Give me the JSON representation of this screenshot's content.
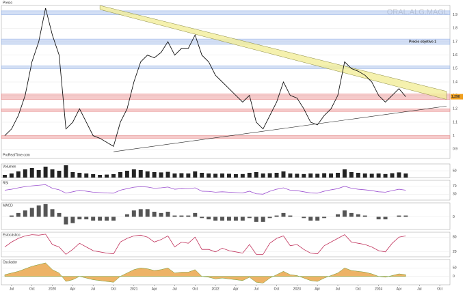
{
  "chart_data": {
    "type": "line",
    "title": "ORAL.ALG.MAGL",
    "subtitle": "Precio",
    "source": "ProRealTime.com",
    "xlim": [
      -0.5,
      65.5
    ],
    "xticks": [
      {
        "value": 1,
        "label": "Jul"
      },
      {
        "value": 4,
        "label": "Oct"
      },
      {
        "value": 7,
        "label": "2020"
      },
      {
        "value": 10,
        "label": "Apr"
      },
      {
        "value": 13,
        "label": "Jul"
      },
      {
        "value": 16,
        "label": "Oct"
      },
      {
        "value": 19,
        "label": "2021"
      },
      {
        "value": 22,
        "label": "Apr"
      },
      {
        "value": 25,
        "label": "Jul"
      },
      {
        "value": 28,
        "label": "Oct"
      },
      {
        "value": 31,
        "label": "2022"
      },
      {
        "value": 34,
        "label": "Apr"
      },
      {
        "value": 37,
        "label": "Jul"
      },
      {
        "value": 40,
        "label": "Oct"
      },
      {
        "value": 43,
        "label": "2023"
      },
      {
        "value": 46,
        "label": "Apr"
      },
      {
        "value": 49,
        "label": "Jul"
      },
      {
        "value": 52,
        "label": "Oct"
      },
      {
        "value": 55,
        "label": "2024"
      },
      {
        "value": 58,
        "label": "Apr"
      },
      {
        "value": 61,
        "label": "Jul"
      },
      {
        "value": 64,
        "label": "Oct"
      }
    ],
    "ylim": [
      0.83,
      1.97
    ],
    "yticks": [
      0.9,
      1,
      1.1,
      1.2,
      1.3,
      1.4,
      1.5,
      1.6,
      1.7,
      1.8,
      1.9
    ],
    "grid": true,
    "series": [
      {
        "name": "Precio",
        "color": "#111111",
        "values": [
          1.0,
          1.05,
          1.15,
          1.3,
          1.55,
          1.7,
          1.95,
          1.75,
          1.6,
          1.05,
          1.1,
          1.2,
          1.1,
          1.0,
          0.98,
          0.95,
          0.92,
          1.1,
          1.2,
          1.4,
          1.55,
          1.6,
          1.58,
          1.62,
          1.7,
          1.6,
          1.65,
          1.65,
          1.75,
          1.6,
          1.55,
          1.45,
          1.4,
          1.35,
          1.3,
          1.25,
          1.3,
          1.1,
          1.05,
          1.15,
          1.25,
          1.4,
          1.3,
          1.28,
          1.2,
          1.1,
          1.08,
          1.15,
          1.2,
          1.3,
          1.55,
          1.5,
          1.48,
          1.45,
          1.4,
          1.3,
          1.25,
          1.3,
          1.35,
          1.29
        ]
      }
    ],
    "last_label": {
      "value": 1.29,
      "label": "1,290"
    },
    "zones": [
      {
        "from": 1.9,
        "to": 1.93,
        "color": "#9db8e8"
      },
      {
        "from": 1.68,
        "to": 1.72,
        "color": "#9db8e8",
        "label": "Precio objetivo 1"
      },
      {
        "from": 1.5,
        "to": 1.52,
        "color": "#9db8e8"
      },
      {
        "from": 1.27,
        "to": 1.31,
        "color": "#e88a8a"
      },
      {
        "from": 1.18,
        "to": 1.2,
        "color": "#e88a8a"
      },
      {
        "from": 0.98,
        "to": 1.0,
        "color": "#e88a8a"
      }
    ],
    "channel": {
      "x": [
        14,
        65
      ],
      "upper": [
        1.97,
        1.33
      ],
      "lower": [
        1.94,
        1.27
      ],
      "color": "#f2ee9a"
    },
    "trendline": {
      "x": [
        16,
        65
      ],
      "y": [
        0.88,
        1.22
      ],
      "color": "#222222"
    },
    "panels": [
      {
        "name": "Volumen",
        "kind": "bar",
        "color": "#222222",
        "ylim": [
          0,
          100
        ],
        "yticks": [
          50
        ],
        "values": [
          20,
          30,
          45,
          60,
          70,
          55,
          80,
          60,
          50,
          90,
          40,
          35,
          30,
          25,
          20,
          22,
          25,
          40,
          50,
          60,
          55,
          45,
          40,
          38,
          42,
          30,
          32,
          30,
          45,
          35,
          30,
          28,
          30,
          28,
          25,
          26,
          35,
          40,
          30,
          32,
          35,
          45,
          30,
          28,
          26,
          30,
          28,
          32,
          30,
          35,
          60,
          40,
          35,
          30,
          28,
          30,
          26,
          32,
          38,
          30
        ]
      },
      {
        "name": "RSI",
        "kind": "line",
        "color": "#9b4fd0",
        "ylim": [
          0,
          100
        ],
        "yticks": [
          30,
          70
        ],
        "values": [
          50,
          55,
          62,
          68,
          72,
          75,
          78,
          60,
          52,
          35,
          42,
          50,
          45,
          40,
          38,
          36,
          35,
          50,
          58,
          65,
          68,
          66,
          60,
          62,
          66,
          55,
          58,
          57,
          62,
          45,
          44,
          40,
          42,
          40,
          38,
          36,
          45,
          32,
          30,
          45,
          55,
          62,
          50,
          48,
          42,
          36,
          35,
          45,
          52,
          58,
          70,
          60,
          55,
          52,
          48,
          42,
          40,
          48,
          55,
          50
        ]
      },
      {
        "name": "MACD",
        "kind": "bar",
        "color": "#555555",
        "ylim": [
          -0.1,
          0.11
        ],
        "yticks": [
          0
        ],
        "values": [
          0.0,
          0.01,
          0.03,
          0.05,
          0.07,
          0.09,
          0.1,
          0.06,
          0.03,
          -0.06,
          -0.05,
          -0.02,
          -0.02,
          -0.03,
          -0.03,
          -0.03,
          -0.03,
          0.0,
          0.02,
          0.05,
          0.06,
          0.06,
          0.04,
          0.03,
          0.04,
          0.01,
          0.01,
          0.01,
          0.03,
          -0.01,
          -0.02,
          -0.03,
          -0.03,
          -0.03,
          -0.03,
          -0.03,
          -0.01,
          -0.04,
          -0.04,
          -0.01,
          0.01,
          0.03,
          0.01,
          0.0,
          -0.01,
          -0.03,
          -0.03,
          -0.01,
          0.0,
          0.02,
          0.05,
          0.03,
          0.02,
          0.01,
          0.0,
          -0.02,
          -0.02,
          0.0,
          0.01,
          0.01
        ]
      },
      {
        "name": "Estocástico",
        "kind": "line",
        "color": "#c0305a",
        "ylim": [
          0,
          100
        ],
        "yticks": [
          20,
          80
        ],
        "values": [
          40,
          60,
          75,
          85,
          90,
          88,
          92,
          50,
          40,
          10,
          30,
          55,
          40,
          25,
          20,
          15,
          12,
          60,
          75,
          85,
          88,
          80,
          60,
          70,
          85,
          40,
          60,
          55,
          80,
          30,
          30,
          20,
          35,
          25,
          20,
          15,
          50,
          10,
          10,
          55,
          75,
          85,
          45,
          50,
          30,
          15,
          12,
          45,
          60,
          75,
          90,
          60,
          55,
          50,
          40,
          25,
          20,
          55,
          80,
          85
        ]
      },
      {
        "name": "Oscilador",
        "kind": "area",
        "color": "#e8a040",
        "ylim": [
          -50,
          100
        ],
        "yticks": [
          0,
          50
        ],
        "values": [
          10,
          20,
          30,
          45,
          60,
          70,
          80,
          40,
          20,
          -30,
          -20,
          0,
          -10,
          -20,
          -25,
          -30,
          -35,
          0,
          20,
          40,
          50,
          45,
          35,
          40,
          50,
          20,
          25,
          25,
          40,
          0,
          -5,
          -15,
          -10,
          -15,
          -20,
          -25,
          -5,
          -35,
          -40,
          -10,
          10,
          30,
          10,
          5,
          -10,
          -25,
          -30,
          -10,
          5,
          20,
          50,
          35,
          30,
          25,
          15,
          0,
          -5,
          5,
          15,
          10
        ]
      }
    ]
  }
}
